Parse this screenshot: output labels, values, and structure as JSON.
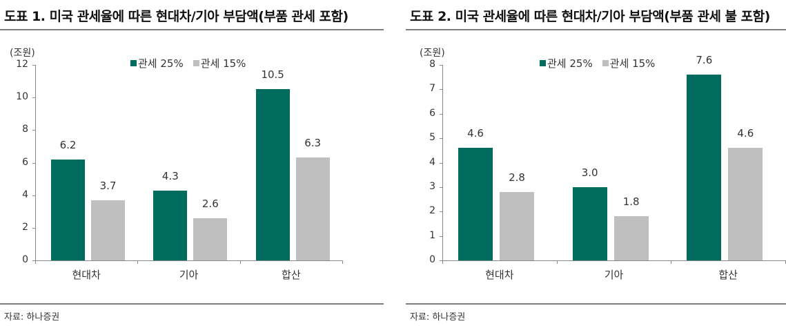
{
  "colors": {
    "tariff25": "#006B5F",
    "tariff15": "#BFBFBF"
  },
  "charts": [
    {
      "title": "도표 1. 미국 관세율에 따른 현대차/기아 부담액(부품 관세 포함)",
      "unit": "(조원)",
      "legend": [
        "관세 25%",
        "관세 15%"
      ],
      "y_ticks": [
        "0",
        "2",
        "4",
        "6",
        "8",
        "10",
        "12"
      ],
      "categories": [
        "현대차",
        "기아",
        "합산"
      ],
      "value_labels_25": [
        "6.2",
        "4.3",
        "10.5"
      ],
      "value_labels_15": [
        "3.7",
        "2.6",
        "6.3"
      ],
      "source": "자료: 하나증권"
    },
    {
      "title": "도표 2. 미국 관세율에 따른 현대차/기아 부담액(부품 관세 불 포함)",
      "unit": "(조원)",
      "legend": [
        "관세 25%",
        "관세 15%"
      ],
      "y_ticks": [
        "0",
        "1",
        "2",
        "3",
        "4",
        "5",
        "6",
        "7",
        "8"
      ],
      "categories": [
        "현대차",
        "기아",
        "합산"
      ],
      "value_labels_25": [
        "4.6",
        "3.0",
        "7.6"
      ],
      "value_labels_15": [
        "2.8",
        "1.8",
        "4.6"
      ],
      "source": "자료: 하나증권"
    }
  ],
  "chart_data": [
    {
      "type": "bar",
      "title": "도표 1. 미국 관세율에 따른 현대차/기아 부담액(부품 관세 포함)",
      "ylabel": "(조원)",
      "categories": [
        "현대차",
        "기아",
        "합산"
      ],
      "series": [
        {
          "name": "관세 25%",
          "values": [
            6.2,
            4.3,
            10.5
          ]
        },
        {
          "name": "관세 15%",
          "values": [
            3.7,
            2.6,
            6.3
          ]
        }
      ],
      "ylim": [
        0,
        12
      ],
      "yticks": [
        0,
        2,
        4,
        6,
        8,
        10,
        12
      ],
      "legend_position": "top-center",
      "grid": false
    },
    {
      "type": "bar",
      "title": "도표 2. 미국 관세율에 따른 현대차/기아 부담액(부품 관세 불 포함)",
      "ylabel": "(조원)",
      "categories": [
        "현대차",
        "기아",
        "합산"
      ],
      "series": [
        {
          "name": "관세 25%",
          "values": [
            4.6,
            3.0,
            7.6
          ]
        },
        {
          "name": "관세 15%",
          "values": [
            2.8,
            1.8,
            4.6
          ]
        }
      ],
      "ylim": [
        0,
        8
      ],
      "yticks": [
        0,
        1,
        2,
        3,
        4,
        5,
        6,
        7,
        8
      ],
      "legend_position": "top-center",
      "grid": false
    }
  ]
}
